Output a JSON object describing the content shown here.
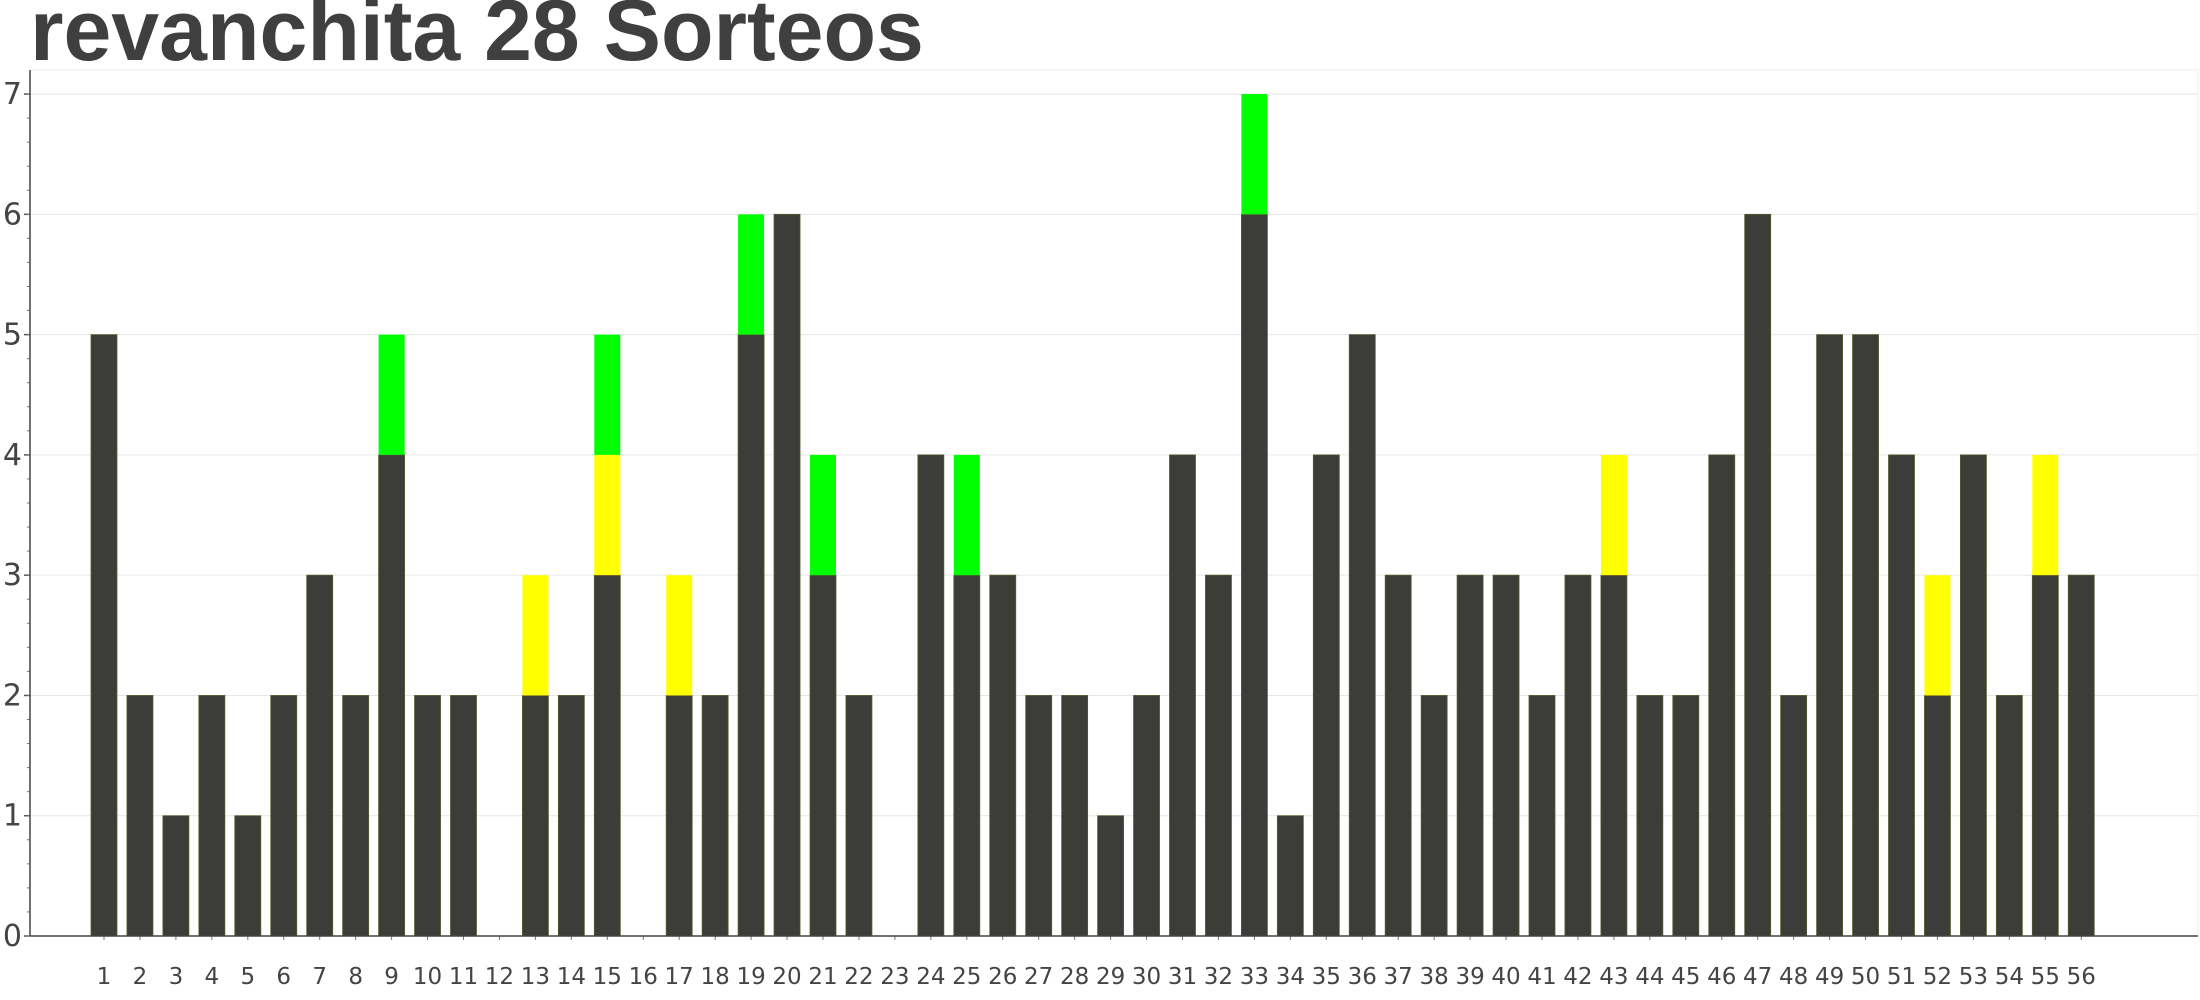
{
  "chart_data": {
    "type": "bar",
    "title": "revanchita 28 Sorteos",
    "xlabel": "",
    "ylabel": "",
    "ylim": [
      0,
      7.2
    ],
    "yticks": [
      0,
      1,
      2,
      3,
      4,
      5,
      6,
      7
    ],
    "grid": true,
    "legend": "none",
    "stacked": true,
    "categories": [
      "1",
      "2",
      "3",
      "4",
      "5",
      "6",
      "7",
      "8",
      "9",
      "10",
      "11",
      "12",
      "13",
      "14",
      "15",
      "16",
      "17",
      "18",
      "19",
      "20",
      "21",
      "22",
      "23",
      "24",
      "25",
      "26",
      "27",
      "28",
      "29",
      "30",
      "31",
      "32",
      "33",
      "34",
      "35",
      "36",
      "37",
      "38",
      "39",
      "40",
      "41",
      "42",
      "43",
      "44",
      "45",
      "46",
      "47",
      "48",
      "49",
      "50",
      "51",
      "52",
      "53",
      "54",
      "55",
      "56"
    ],
    "series": [
      {
        "color": "#3c3c39",
        "values": [
          5,
          2,
          1,
          2,
          1,
          2,
          3,
          2,
          4,
          2,
          2,
          0,
          2,
          2,
          3,
          0,
          2,
          2,
          5,
          6,
          3,
          2,
          0,
          4,
          3,
          3,
          2,
          2,
          1,
          2,
          4,
          3,
          6,
          1,
          4,
          5,
          3,
          2,
          3,
          3,
          2,
          3,
          3,
          2,
          2,
          4,
          6,
          2,
          5,
          5,
          4,
          2,
          4,
          2,
          3,
          3
        ]
      },
      {
        "color": "#ffff00",
        "values": [
          0,
          0,
          0,
          0,
          0,
          0,
          0,
          0,
          0,
          0,
          0,
          0,
          1,
          0,
          1,
          0,
          1,
          0,
          0,
          0,
          0,
          0,
          0,
          0,
          0,
          0,
          0,
          0,
          0,
          0,
          0,
          0,
          0,
          0,
          0,
          0,
          0,
          0,
          0,
          0,
          0,
          0,
          1,
          0,
          0,
          0,
          0,
          0,
          0,
          0,
          0,
          1,
          0,
          0,
          1,
          0
        ]
      },
      {
        "color": "#00ff00",
        "values": [
          0,
          0,
          0,
          0,
          0,
          0,
          0,
          0,
          1,
          0,
          0,
          0,
          0,
          0,
          1,
          0,
          0,
          0,
          1,
          0,
          1,
          0,
          0,
          0,
          1,
          0,
          0,
          0,
          0,
          0,
          0,
          0,
          1,
          0,
          0,
          0,
          0,
          0,
          0,
          0,
          0,
          0,
          0,
          0,
          0,
          0,
          0,
          0,
          0,
          0,
          0,
          0,
          0,
          0,
          0,
          0
        ]
      }
    ]
  }
}
